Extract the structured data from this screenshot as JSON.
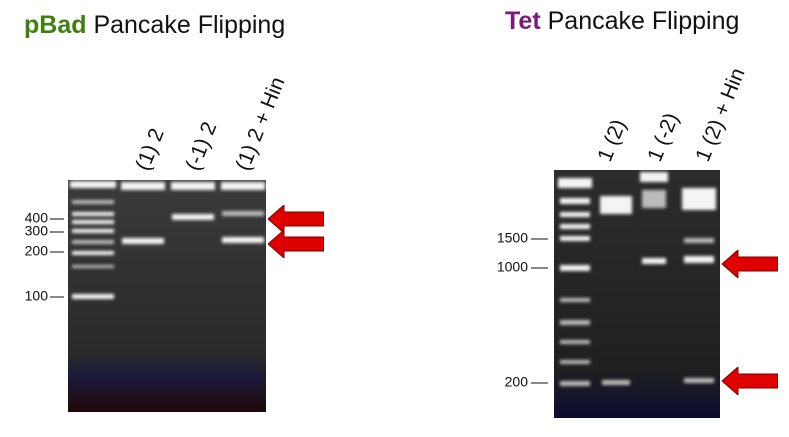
{
  "left": {
    "title": {
      "emphasis": "pBad",
      "rest": "Pancake Flipping"
    },
    "lanes": [
      "(1) 2",
      "(-1) 2",
      "(1) 2 + Hin"
    ],
    "markers": [
      "400",
      "300",
      "200",
      "100"
    ]
  },
  "right": {
    "title": {
      "emphasis": "Tet",
      "rest": "Pancake Flipping"
    },
    "lanes": [
      "1 (2)",
      "1 (-2)",
      "1 (2) + Hin"
    ],
    "markers": [
      "1500",
      "1000",
      "200"
    ]
  }
}
